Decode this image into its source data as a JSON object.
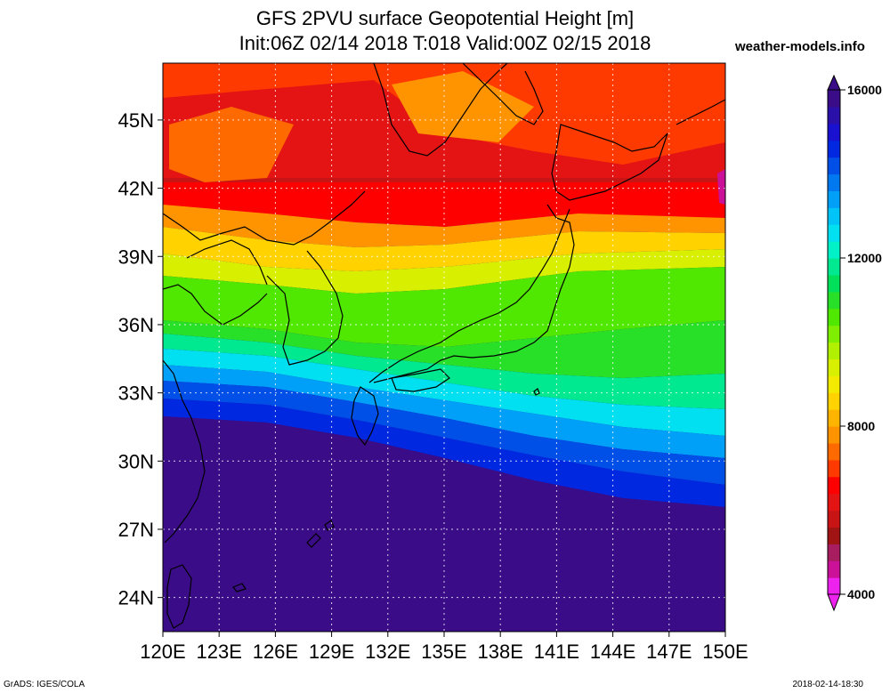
{
  "header": {
    "title_line1": "GFS 2PVU surface Geopotential Height [m]",
    "title_line2": "Init:06Z 02/14 2018 T:018 Valid:00Z 02/15 2018",
    "brand": "weather-models.info"
  },
  "map": {
    "lat_labels": [
      "45N",
      "42N",
      "39N",
      "36N",
      "33N",
      "30N",
      "27N",
      "24N"
    ],
    "lat_values": [
      45,
      42,
      39,
      36,
      33,
      30,
      27,
      24
    ],
    "lon_labels": [
      "120E",
      "123E",
      "126E",
      "129E",
      "132E",
      "135E",
      "138E",
      "141E",
      "144E",
      "147E",
      "150E"
    ],
    "lon_values": [
      120,
      123,
      126,
      129,
      132,
      135,
      138,
      141,
      144,
      147,
      150
    ],
    "lon_range": [
      120,
      150
    ],
    "lat_range": [
      22.5,
      47.5
    ],
    "grid": true
  },
  "colorbar": {
    "labels": [
      "16000",
      "12000",
      "8000",
      "4000"
    ],
    "label_values": [
      16000,
      12000,
      8000,
      4000
    ],
    "range": [
      4000,
      16000
    ],
    "colors": [
      "#ee22ee",
      "#cc1199",
      "#a81c60",
      "#a01414",
      "#c81414",
      "#e41414",
      "#ff0000",
      "#ff3a00",
      "#ff6a00",
      "#ff9400",
      "#ffb400",
      "#ffd200",
      "#f4ea00",
      "#d8f000",
      "#b0f000",
      "#80ee00",
      "#50e800",
      "#28e028",
      "#00e05a",
      "#00e890",
      "#00f0c8",
      "#00e0f0",
      "#00c4f8",
      "#00a0f8",
      "#0078f0",
      "#0050e8",
      "#0028e0",
      "#1a10d0",
      "#2a10a8",
      "#3a0c88"
    ]
  },
  "footer": {
    "left": "GrADS: IGES/COLA",
    "right": "2018-02-14-18:30"
  }
}
